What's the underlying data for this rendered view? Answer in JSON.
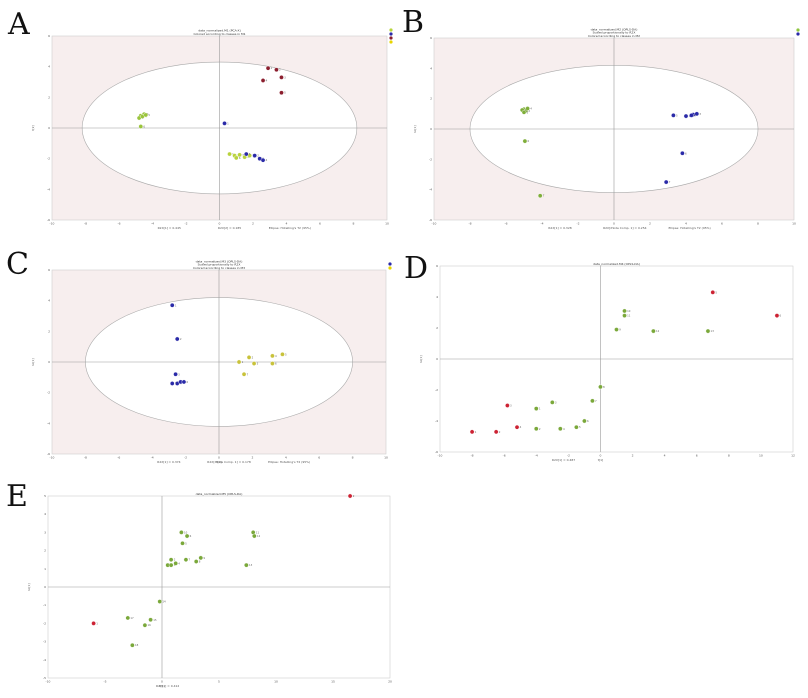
{
  "panels": [
    {
      "letter": "A"
    },
    {
      "letter": "B"
    },
    {
      "letter": "C"
    },
    {
      "letter": "D"
    },
    {
      "letter": "E"
    }
  ],
  "chart_data": [
    {
      "panel": "A",
      "type": "scatter",
      "title": [
        "data_normalized.M1 (PCA-X)",
        "Colored according to classes in M1"
      ],
      "xlim": [
        -10,
        10
      ],
      "ylim": [
        -6,
        6
      ],
      "xticks": [
        -10,
        -8,
        -6,
        -4,
        -2,
        0,
        2,
        4,
        6,
        8,
        10
      ],
      "yticks": [
        -6,
        -4,
        -2,
        0,
        2,
        4,
        6
      ],
      "ellipse": {
        "rx": 8.2,
        "ry": 4.3
      },
      "xlabel": "",
      "ylabel": "t[2]",
      "footer": [
        "R2X[1] = 0.445",
        "R2X[2] = 0.185",
        "Ellipse: Hotelling's T2 (95%)"
      ],
      "legend_colors": [
        "#b7d53c",
        "#2a2aa8",
        "#8b1e2e",
        "#e8d400"
      ],
      "series": [
        {
          "color": "#9ac43c",
          "points": [
            [
              -4.7,
              0.8
            ],
            [
              -4.5,
              0.9
            ],
            [
              -4.8,
              0.65
            ],
            [
              -4.6,
              0.75
            ],
            [
              -4.4,
              0.85
            ],
            [
              -4.7,
              0.1
            ]
          ]
        },
        {
          "color": "#b8d23c",
          "points": [
            [
              0.6,
              -1.7
            ],
            [
              0.9,
              -1.8
            ],
            [
              1.2,
              -1.75
            ],
            [
              1.5,
              -1.9
            ],
            [
              1.8,
              -1.8
            ],
            [
              1.0,
              -1.95
            ]
          ]
        },
        {
          "color": "#2a2aa8",
          "points": [
            [
              0.3,
              0.3
            ],
            [
              2.1,
              -1.8
            ],
            [
              2.4,
              -2.0
            ],
            [
              2.6,
              -2.1
            ],
            [
              1.6,
              -1.7
            ]
          ]
        },
        {
          "color": "#8b1e2e",
          "points": [
            [
              2.9,
              3.9
            ],
            [
              3.4,
              3.8
            ],
            [
              3.7,
              3.3
            ],
            [
              2.6,
              3.1
            ],
            [
              3.7,
              2.3
            ]
          ]
        }
      ]
    },
    {
      "panel": "B",
      "type": "scatter",
      "title": [
        "data_normalized.M2 (OPLS-DA)",
        "Scaled proportionally to R2X",
        "Colored according to classes in M2"
      ],
      "xlim": [
        -10,
        10
      ],
      "ylim": [
        -6,
        6
      ],
      "xticks": [
        -10,
        -8,
        -6,
        -4,
        -2,
        0,
        2,
        4,
        6,
        8,
        10
      ],
      "yticks": [
        -6,
        -4,
        -2,
        0,
        2,
        4,
        6
      ],
      "ellipse": {
        "rx": 8.0,
        "ry": 4.2
      },
      "xlabel": "",
      "ylabel": "to[1]",
      "footer": [
        "R2X[1] = 0.328",
        "R2X[XSide Comp. 1] = 0.254",
        "Ellipse: Hotelling's T2 (95%)"
      ],
      "legend_colors": [
        "#8ec63f",
        "#2a2aa8"
      ],
      "series": [
        {
          "color": "#7fae3a",
          "points": [
            [
              -5.0,
              1.3
            ],
            [
              -4.9,
              1.2
            ],
            [
              -5.1,
              1.25
            ],
            [
              -4.8,
              1.35
            ],
            [
              -5.0,
              1.1
            ],
            [
              -4.95,
              -0.8
            ],
            [
              -4.1,
              -4.4
            ]
          ]
        },
        {
          "color": "#2a2aa8",
          "points": [
            [
              4.0,
              0.85
            ],
            [
              4.4,
              0.95
            ],
            [
              4.6,
              1.0
            ],
            [
              4.3,
              0.9
            ],
            [
              3.3,
              0.9
            ],
            [
              3.8,
              -1.6
            ],
            [
              2.9,
              -3.5
            ]
          ]
        }
      ]
    },
    {
      "panel": "C",
      "type": "scatter",
      "title": [
        "data_normalized.M3 (OPLS-DA)",
        "Scaled proportionally to R2X",
        "Colored according to classes in M3"
      ],
      "xlim": [
        -10,
        10
      ],
      "ylim": [
        -6,
        6
      ],
      "xticks": [
        -10,
        -8,
        -6,
        -4,
        -2,
        0,
        2,
        4,
        6,
        8,
        10
      ],
      "yticks": [
        -6,
        -4,
        -2,
        0,
        2,
        4,
        6
      ],
      "ellipse": {
        "rx": 8.0,
        "ry": 4.2
      },
      "xlabel": "t[1]",
      "ylabel": "to[1]",
      "footer": [
        "R2X[1] = 0.374",
        "R2X[XSide Comp. 1] = 0.178",
        "Ellipse: Hotelling's T2 (95%)"
      ],
      "legend_colors": [
        "#2a2aa8",
        "#e8d400"
      ],
      "series": [
        {
          "color": "#2a2aa8",
          "points": [
            [
              -2.8,
              3.7
            ],
            [
              -2.5,
              1.5
            ],
            [
              -2.6,
              -0.8
            ],
            [
              -2.5,
              -1.4
            ],
            [
              -2.3,
              -1.3
            ],
            [
              -2.1,
              -1.3
            ],
            [
              -2.8,
              -1.4
            ]
          ]
        },
        {
          "color": "#c8c23a",
          "points": [
            [
              1.2,
              0.0
            ],
            [
              1.8,
              0.3
            ],
            [
              2.1,
              -0.1
            ],
            [
              3.2,
              0.4
            ],
            [
              3.8,
              0.5
            ],
            [
              3.2,
              -0.1
            ],
            [
              1.5,
              -0.8
            ]
          ]
        }
      ]
    },
    {
      "panel": "D",
      "type": "scatter",
      "title": [
        "data_normalized.M4 (OPLS-DA)"
      ],
      "xlim": [
        -10,
        12
      ],
      "ylim": [
        -6,
        6
      ],
      "xticks": [
        -10,
        -8,
        -6,
        -4,
        -2,
        0,
        2,
        4,
        6,
        8,
        10,
        12
      ],
      "yticks": [
        -6,
        -4,
        -2,
        0,
        2,
        4,
        6
      ],
      "xlabel": "t[1]",
      "ylabel": "to[1]",
      "footer": [
        "R2X[1] = 0.487"
      ],
      "series": [
        {
          "color": "#cc2233",
          "points": [
            [
              -8.0,
              -4.7
            ],
            [
              -6.5,
              -4.7
            ],
            [
              -5.8,
              -3.0
            ],
            [
              -5.2,
              -4.4
            ],
            [
              7.0,
              4.3
            ],
            [
              11.0,
              2.8
            ]
          ]
        },
        {
          "color": "#7aa83a",
          "points": [
            [
              -4.0,
              -3.2
            ],
            [
              -4.0,
              -4.5
            ],
            [
              -3.0,
              -2.8
            ],
            [
              -2.5,
              -4.5
            ],
            [
              -1.5,
              -4.4
            ],
            [
              -1.0,
              -4.0
            ],
            [
              -0.5,
              -2.7
            ],
            [
              0.0,
              -1.8
            ],
            [
              1.0,
              1.9
            ],
            [
              1.5,
              3.1
            ],
            [
              1.5,
              2.8
            ],
            [
              3.3,
              1.8
            ],
            [
              6.7,
              1.8
            ]
          ]
        }
      ]
    },
    {
      "panel": "E",
      "type": "scatter",
      "title": [
        "data_normalized.M5 (OPLS-DA)"
      ],
      "xlim": [
        -10,
        20
      ],
      "ylim": [
        -5,
        5
      ],
      "xticks": [
        -10,
        -5,
        0,
        5,
        10,
        15,
        20
      ],
      "yticks": [
        -5,
        -4,
        -3,
        -2,
        -1,
        0,
        1,
        2,
        3,
        4,
        5
      ],
      "xlabel": "t[1]",
      "ylabel": "to[1]",
      "footer": [
        "R2X[1] = 0.412"
      ],
      "series": [
        {
          "color": "#cc2233",
          "points": [
            [
              -6.0,
              -2.0
            ],
            [
              16.5,
              5.0
            ]
          ]
        },
        {
          "color": "#7aa83a",
          "points": [
            [
              0.5,
              1.2
            ],
            [
              0.8,
              1.5
            ],
            [
              0.8,
              1.2
            ],
            [
              1.2,
              1.3
            ],
            [
              1.8,
              2.4
            ],
            [
              2.2,
              2.8
            ],
            [
              2.1,
              1.5
            ],
            [
              3.0,
              1.4
            ],
            [
              3.4,
              1.6
            ],
            [
              1.7,
              3.0
            ],
            [
              8.0,
              3.0
            ],
            [
              8.1,
              2.8
            ],
            [
              7.4,
              1.2
            ],
            [
              -0.2,
              -0.8
            ],
            [
              -1.0,
              -1.8
            ],
            [
              -1.5,
              -2.1
            ],
            [
              -3.0,
              -1.7
            ],
            [
              -2.6,
              -3.2
            ]
          ]
        }
      ]
    }
  ]
}
